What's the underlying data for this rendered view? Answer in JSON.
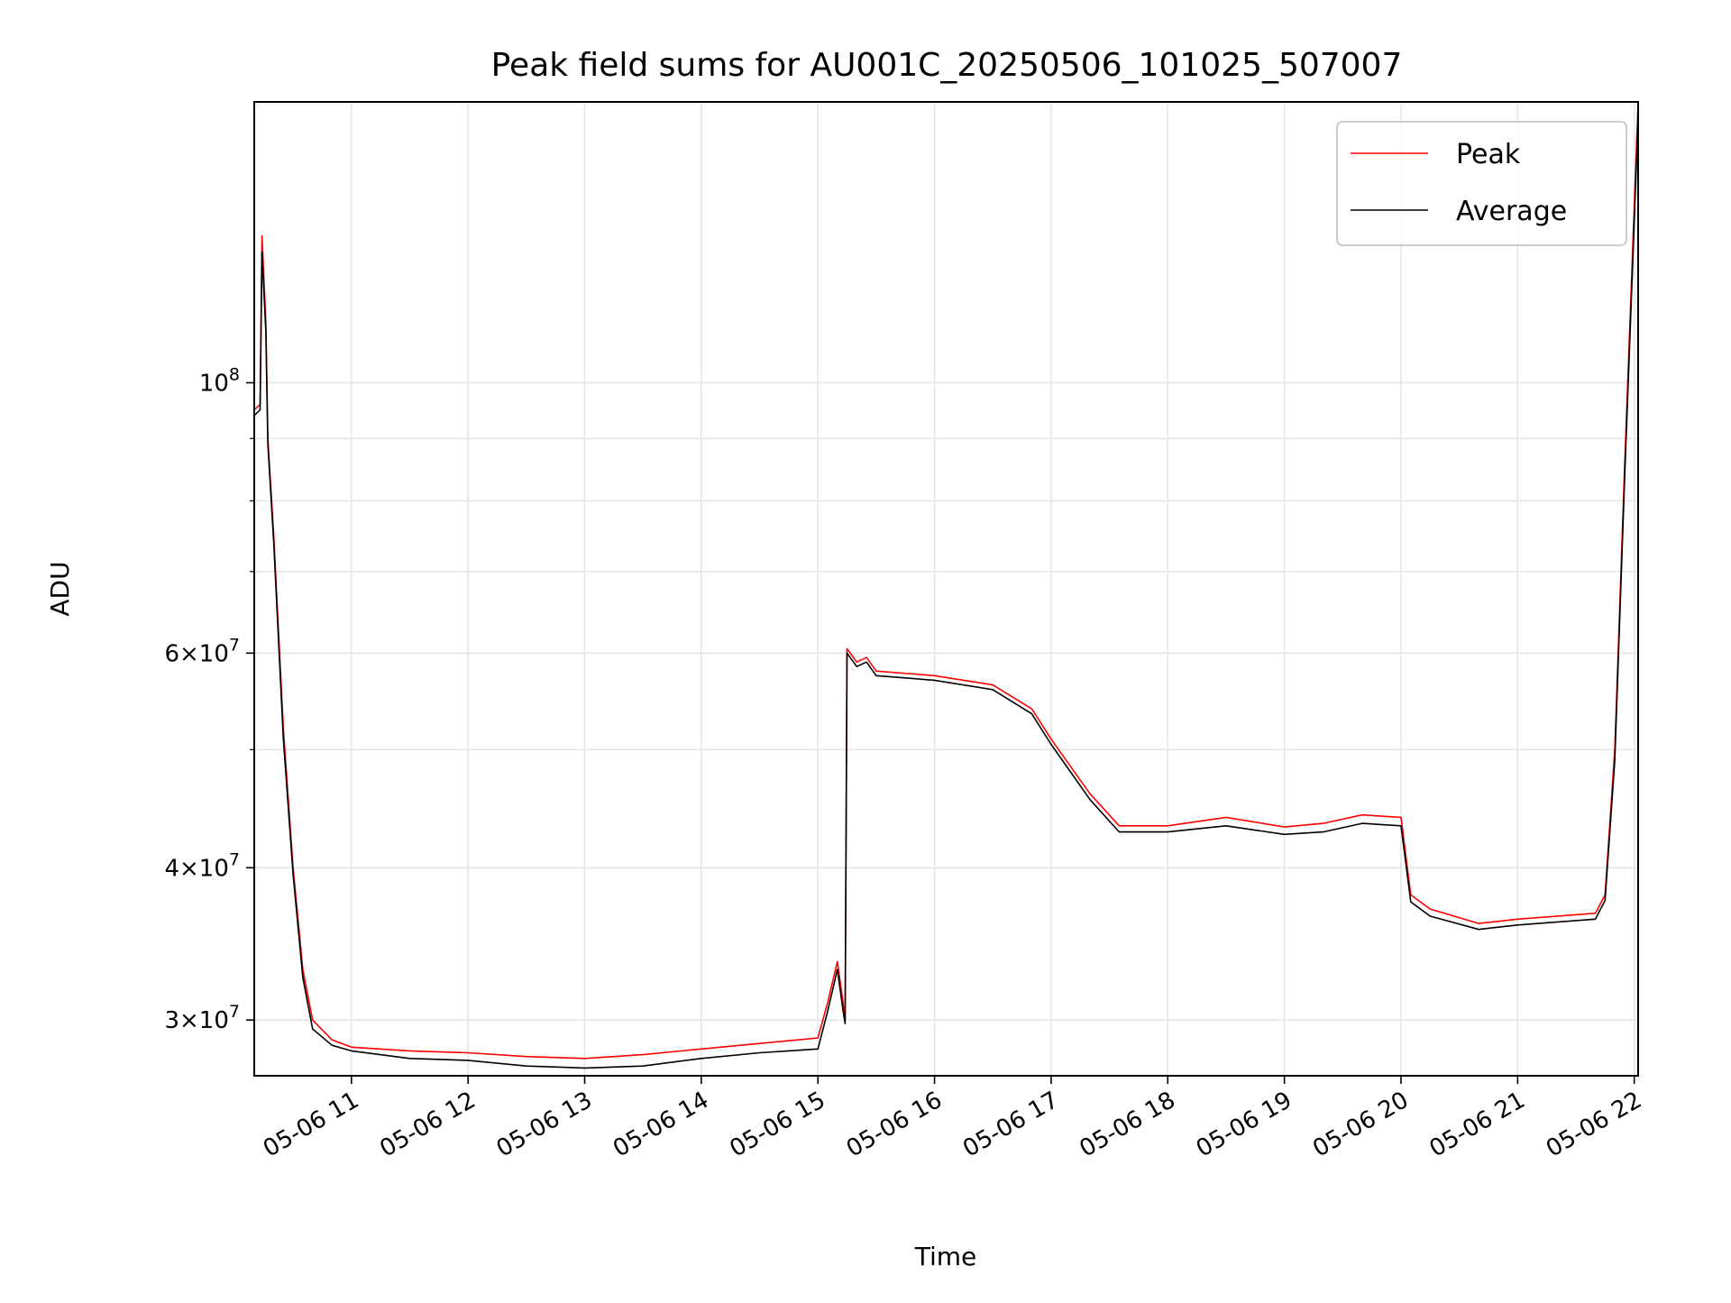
{
  "chart_data": {
    "type": "line",
    "title": "Peak field sums for AU001C_20250506_101025_507007",
    "xlabel": "Time",
    "ylabel": "ADU",
    "yscale": "log",
    "xlim": [
      "2025-05-06 10:10",
      "2025-05-06 22:02"
    ],
    "ylim": [
      27000000,
      170000000
    ],
    "grid": true,
    "legend_position": "top-right",
    "x_ticks": [
      {
        "t": "2025-05-06 11:00",
        "label": "05-06 11"
      },
      {
        "t": "2025-05-06 12:00",
        "label": "05-06 12"
      },
      {
        "t": "2025-05-06 13:00",
        "label": "05-06 13"
      },
      {
        "t": "2025-05-06 14:00",
        "label": "05-06 14"
      },
      {
        "t": "2025-05-06 15:00",
        "label": "05-06 15"
      },
      {
        "t": "2025-05-06 16:00",
        "label": "05-06 16"
      },
      {
        "t": "2025-05-06 17:00",
        "label": "05-06 17"
      },
      {
        "t": "2025-05-06 18:00",
        "label": "05-06 18"
      },
      {
        "t": "2025-05-06 19:00",
        "label": "05-06 19"
      },
      {
        "t": "2025-05-06 20:00",
        "label": "05-06 20"
      },
      {
        "t": "2025-05-06 21:00",
        "label": "05-06 21"
      },
      {
        "t": "2025-05-06 22:00",
        "label": "05-06 22"
      }
    ],
    "y_ticks": [
      {
        "value": 30000000,
        "mantissa": "3",
        "exponent": "7"
      },
      {
        "value": 40000000,
        "mantissa": "4",
        "exponent": "7"
      },
      {
        "value": 60000000,
        "mantissa": "6",
        "exponent": "7"
      },
      {
        "value": 100000000,
        "mantissa": "",
        "exponent": "8"
      }
    ],
    "y_minor_ticks": [
      50000000,
      70000000,
      80000000,
      90000000
    ],
    "series": [
      {
        "name": "Peak",
        "color": "#ff0000",
        "points": [
          [
            "2025-05-06 10:10",
            95000000
          ],
          [
            "2025-05-06 10:13",
            96000000
          ],
          [
            "2025-05-06 10:14",
            132000000
          ],
          [
            "2025-05-06 10:16",
            112000000
          ],
          [
            "2025-05-06 10:17",
            90000000
          ],
          [
            "2025-05-06 10:20",
            75000000
          ],
          [
            "2025-05-06 10:25",
            52000000
          ],
          [
            "2025-05-06 10:30",
            40000000
          ],
          [
            "2025-05-06 10:35",
            33000000
          ],
          [
            "2025-05-06 10:40",
            30000000
          ],
          [
            "2025-05-06 10:50",
            28900000
          ],
          [
            "2025-05-06 11:00",
            28500000
          ],
          [
            "2025-05-06 11:30",
            28300000
          ],
          [
            "2025-05-06 12:00",
            28200000
          ],
          [
            "2025-05-06 12:30",
            28000000
          ],
          [
            "2025-05-06 13:00",
            27900000
          ],
          [
            "2025-05-06 13:30",
            28100000
          ],
          [
            "2025-05-06 14:00",
            28400000
          ],
          [
            "2025-05-06 14:30",
            28700000
          ],
          [
            "2025-05-06 15:00",
            29000000
          ],
          [
            "2025-05-06 15:05",
            31000000
          ],
          [
            "2025-05-06 15:10",
            33500000
          ],
          [
            "2025-05-06 15:13",
            31000000
          ],
          [
            "2025-05-06 15:14",
            30000000
          ],
          [
            "2025-05-06 15:15",
            60500000
          ],
          [
            "2025-05-06 15:20",
            59000000
          ],
          [
            "2025-05-06 15:25",
            59500000
          ],
          [
            "2025-05-06 15:30",
            58000000
          ],
          [
            "2025-05-06 16:00",
            57500000
          ],
          [
            "2025-05-06 16:30",
            56500000
          ],
          [
            "2025-05-06 16:50",
            54000000
          ],
          [
            "2025-05-06 17:00",
            51000000
          ],
          [
            "2025-05-06 17:20",
            46000000
          ],
          [
            "2025-05-06 17:35",
            43300000
          ],
          [
            "2025-05-06 18:00",
            43300000
          ],
          [
            "2025-05-06 18:30",
            44000000
          ],
          [
            "2025-05-06 19:00",
            43200000
          ],
          [
            "2025-05-06 19:20",
            43500000
          ],
          [
            "2025-05-06 19:40",
            44200000
          ],
          [
            "2025-05-06 20:00",
            44000000
          ],
          [
            "2025-05-06 20:05",
            38000000
          ],
          [
            "2025-05-06 20:15",
            37000000
          ],
          [
            "2025-05-06 20:40",
            36000000
          ],
          [
            "2025-05-06 21:00",
            36300000
          ],
          [
            "2025-05-06 21:40",
            36700000
          ],
          [
            "2025-05-06 21:45",
            38000000
          ],
          [
            "2025-05-06 21:50",
            50000000
          ],
          [
            "2025-05-06 21:55",
            85000000
          ],
          [
            "2025-05-06 22:02",
            170000000
          ]
        ]
      },
      {
        "name": "Average",
        "color": "#000000",
        "points": [
          [
            "2025-05-06 10:10",
            94000000
          ],
          [
            "2025-05-06 10:13",
            95000000
          ],
          [
            "2025-05-06 10:14",
            128000000
          ],
          [
            "2025-05-06 10:16",
            110000000
          ],
          [
            "2025-05-06 10:17",
            89000000
          ],
          [
            "2025-05-06 10:20",
            74000000
          ],
          [
            "2025-05-06 10:25",
            51000000
          ],
          [
            "2025-05-06 10:30",
            39500000
          ],
          [
            "2025-05-06 10:35",
            32500000
          ],
          [
            "2025-05-06 10:40",
            29500000
          ],
          [
            "2025-05-06 10:50",
            28600000
          ],
          [
            "2025-05-06 11:00",
            28300000
          ],
          [
            "2025-05-06 11:30",
            27900000
          ],
          [
            "2025-05-06 12:00",
            27800000
          ],
          [
            "2025-05-06 12:30",
            27500000
          ],
          [
            "2025-05-06 13:00",
            27400000
          ],
          [
            "2025-05-06 13:30",
            27500000
          ],
          [
            "2025-05-06 14:00",
            27900000
          ],
          [
            "2025-05-06 14:30",
            28200000
          ],
          [
            "2025-05-06 15:00",
            28400000
          ],
          [
            "2025-05-06 15:05",
            30500000
          ],
          [
            "2025-05-06 15:10",
            33000000
          ],
          [
            "2025-05-06 15:13",
            30500000
          ],
          [
            "2025-05-06 15:14",
            29800000
          ],
          [
            "2025-05-06 15:15",
            60000000
          ],
          [
            "2025-05-06 15:20",
            58500000
          ],
          [
            "2025-05-06 15:25",
            59000000
          ],
          [
            "2025-05-06 15:30",
            57500000
          ],
          [
            "2025-05-06 16:00",
            57000000
          ],
          [
            "2025-05-06 16:30",
            56000000
          ],
          [
            "2025-05-06 16:50",
            53500000
          ],
          [
            "2025-05-06 17:00",
            50500000
          ],
          [
            "2025-05-06 17:20",
            45500000
          ],
          [
            "2025-05-06 17:35",
            42800000
          ],
          [
            "2025-05-06 18:00",
            42800000
          ],
          [
            "2025-05-06 18:30",
            43300000
          ],
          [
            "2025-05-06 19:00",
            42600000
          ],
          [
            "2025-05-06 19:20",
            42800000
          ],
          [
            "2025-05-06 19:40",
            43500000
          ],
          [
            "2025-05-06 20:00",
            43300000
          ],
          [
            "2025-05-06 20:05",
            37500000
          ],
          [
            "2025-05-06 20:15",
            36500000
          ],
          [
            "2025-05-06 20:40",
            35600000
          ],
          [
            "2025-05-06 21:00",
            35900000
          ],
          [
            "2025-05-06 21:40",
            36300000
          ],
          [
            "2025-05-06 21:45",
            37600000
          ],
          [
            "2025-05-06 21:50",
            49000000
          ],
          [
            "2025-05-06 21:55",
            83000000
          ],
          [
            "2025-05-06 22:02",
            165000000
          ]
        ]
      }
    ]
  }
}
